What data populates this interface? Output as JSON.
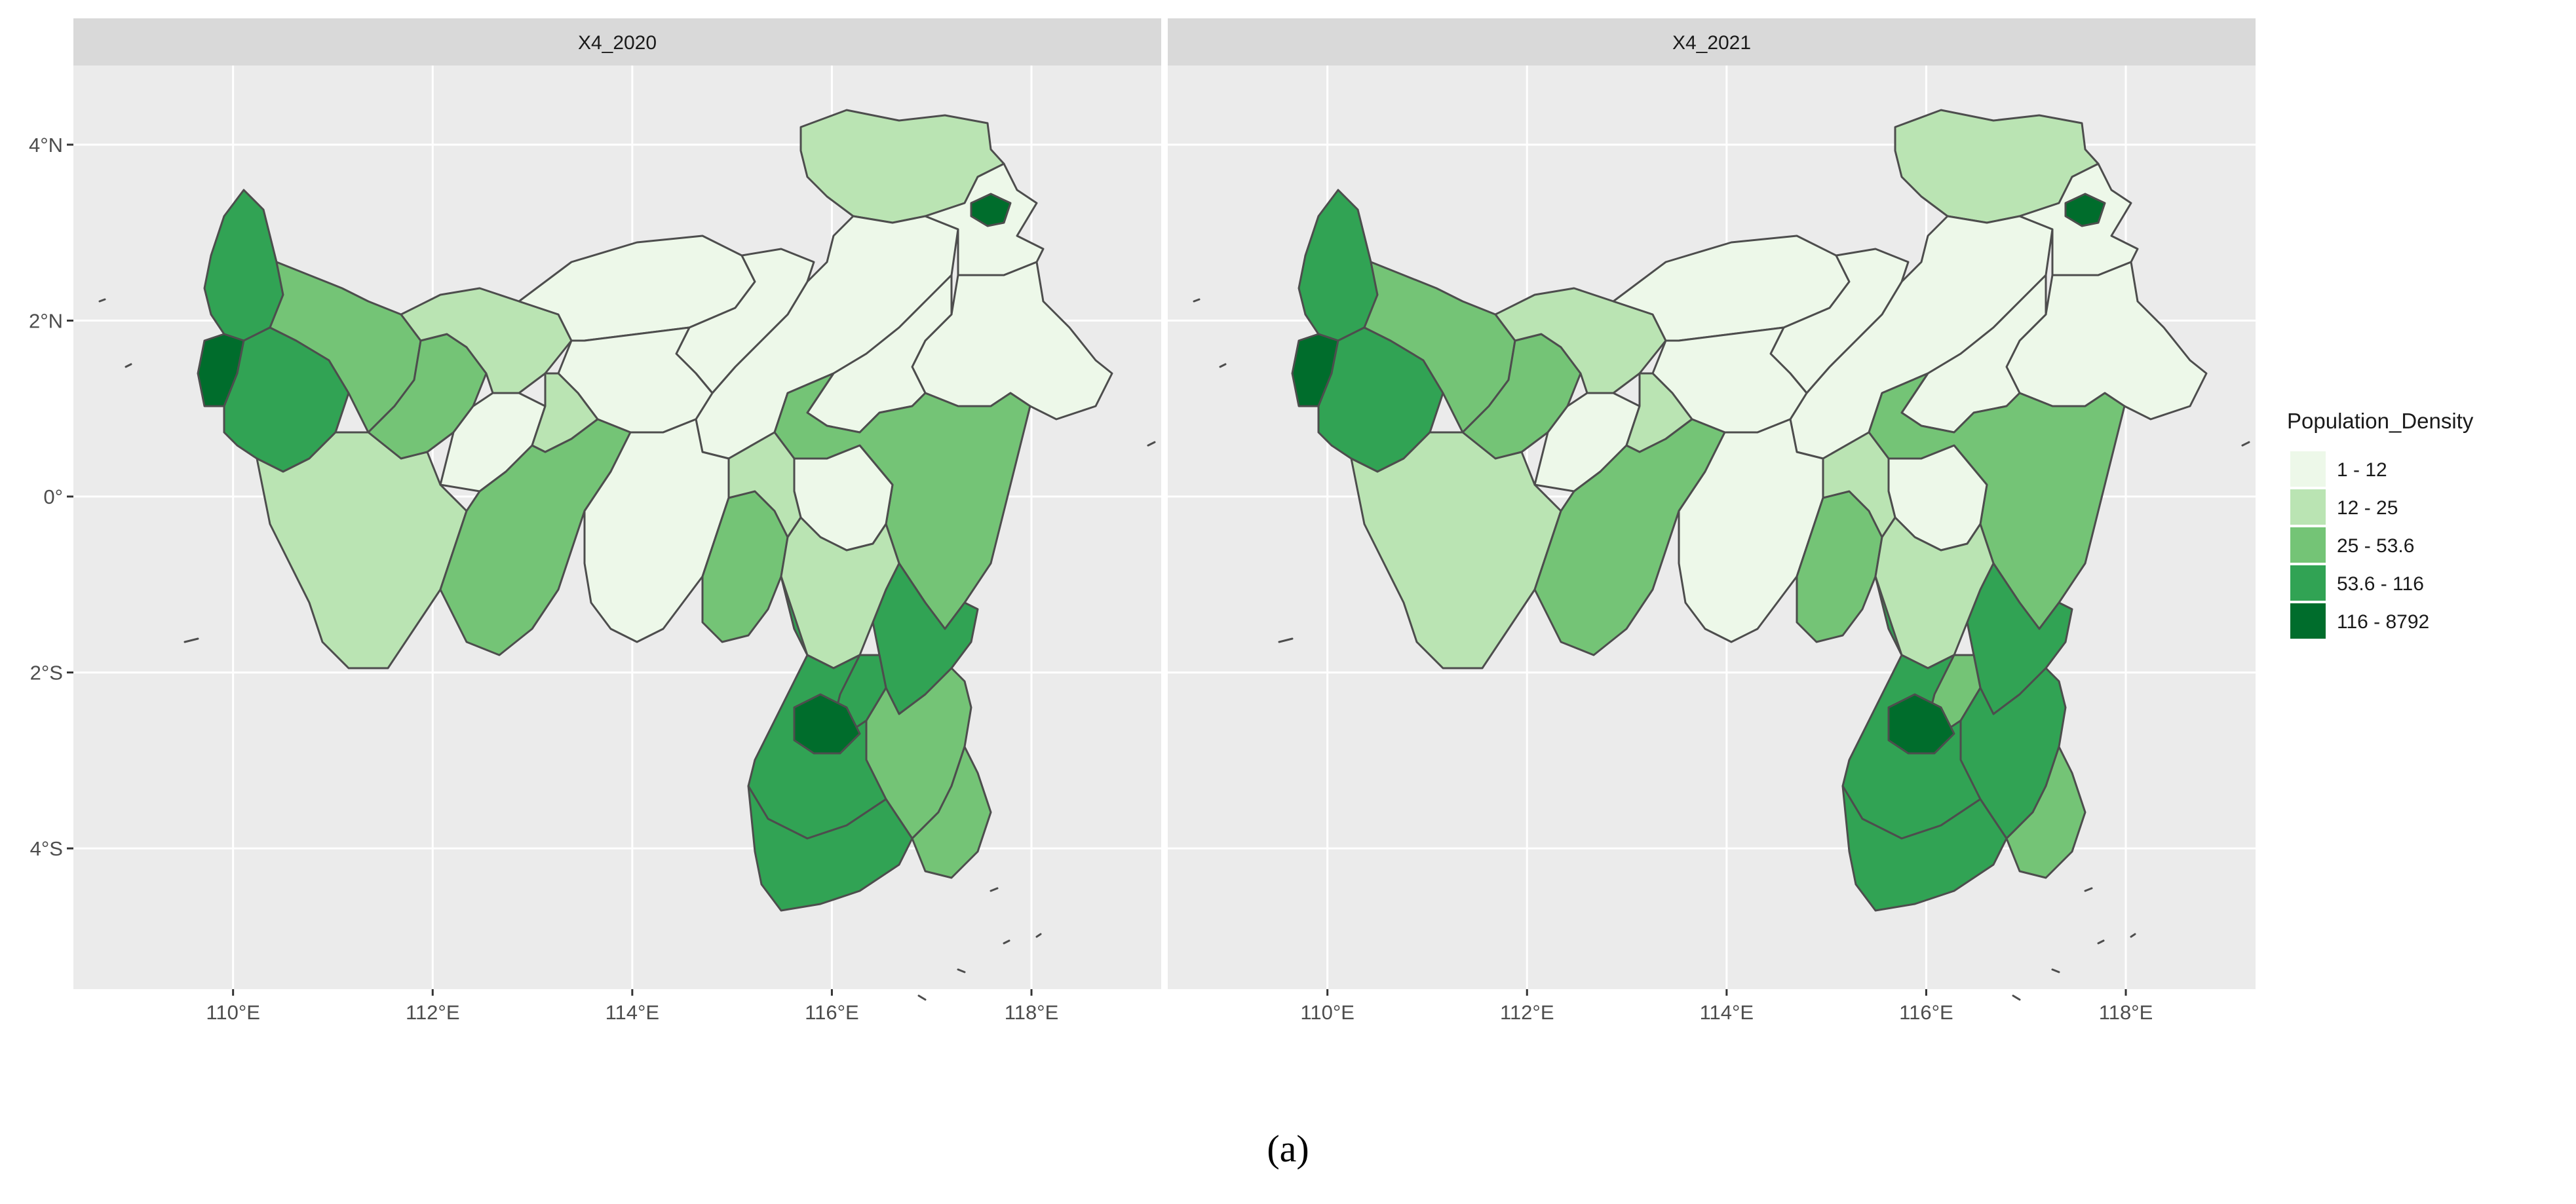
{
  "panels": [
    {
      "strip_label": "X4_2020",
      "category_per_region": {
        "northeast_sabah": 2,
        "ne_archipelago": 5,
        "north_interior": 1,
        "north_east_coast": 1,
        "east_kalimantan_n": 1,
        "east_kalimantan_mid": 1,
        "west_coast_north": 4,
        "pontianak": 5,
        "west_coast_mid": 4,
        "west_interior_a": 3,
        "west_interior_b": 3,
        "west_interior_c": 2,
        "ketapang": 2,
        "ketapang_inland": 1,
        "central_north": 1,
        "central_mid": 1,
        "central_mid_b": 2,
        "kapuas_hulu": 1,
        "central_south_a": 3,
        "central_south_b": 1,
        "central_south_c": 3,
        "central_south_d": 2,
        "central_south_e": 2,
        "kutai": 3,
        "east_mid": 1,
        "samarinda": 4,
        "balikpapan": 3,
        "south_a": 4,
        "south_b": 4,
        "south_coast": 4,
        "south_east": 3,
        "banjarmasin": 5
      }
    },
    {
      "strip_label": "X4_2021",
      "category_per_region": {
        "northeast_sabah": 2,
        "ne_archipelago": 5,
        "north_interior": 1,
        "north_east_coast": 1,
        "east_kalimantan_n": 1,
        "east_kalimantan_mid": 1,
        "west_coast_north": 4,
        "pontianak": 5,
        "west_coast_mid": 4,
        "west_interior_a": 3,
        "west_interior_b": 3,
        "west_interior_c": 2,
        "ketapang": 2,
        "ketapang_inland": 1,
        "central_north": 1,
        "central_mid": 1,
        "central_mid_b": 2,
        "kapuas_hulu": 1,
        "central_south_a": 3,
        "central_south_b": 1,
        "central_south_c": 3,
        "central_south_d": 2,
        "central_south_e": 2,
        "kutai": 3,
        "east_mid": 1,
        "samarinda": 4,
        "balikpapan": 4,
        "south_a": 4,
        "south_b": 3,
        "south_coast": 4,
        "south_east": 3,
        "banjarmasin": 5
      }
    }
  ],
  "axes": {
    "x_ticks": [
      "110°E",
      "112°E",
      "114°E",
      "116°E",
      "118°E"
    ],
    "y_ticks": [
      "4°N",
      "2°N",
      "0°",
      "2°S",
      "4°S"
    ],
    "xlim": [
      108.4,
      119.3
    ],
    "ylim": [
      -5.6,
      4.9
    ]
  },
  "legend": {
    "title": "Population_Density",
    "items": [
      {
        "label": "1 - 12",
        "color": "#edf8e9"
      },
      {
        "label": "12 - 25",
        "color": "#bae4b3"
      },
      {
        "label": "25 - 53.6",
        "color": "#74c476"
      },
      {
        "label": "53.6 - 116",
        "color": "#31a354"
      },
      {
        "label": "116 - 8792",
        "color": "#006d2c"
      }
    ]
  },
  "colors": {
    "panel_background": "#ebebeb",
    "strip_background": "#d9d9d9",
    "grid": "#ffffff",
    "border": "#4d4d4d"
  },
  "caption": "(a)"
}
